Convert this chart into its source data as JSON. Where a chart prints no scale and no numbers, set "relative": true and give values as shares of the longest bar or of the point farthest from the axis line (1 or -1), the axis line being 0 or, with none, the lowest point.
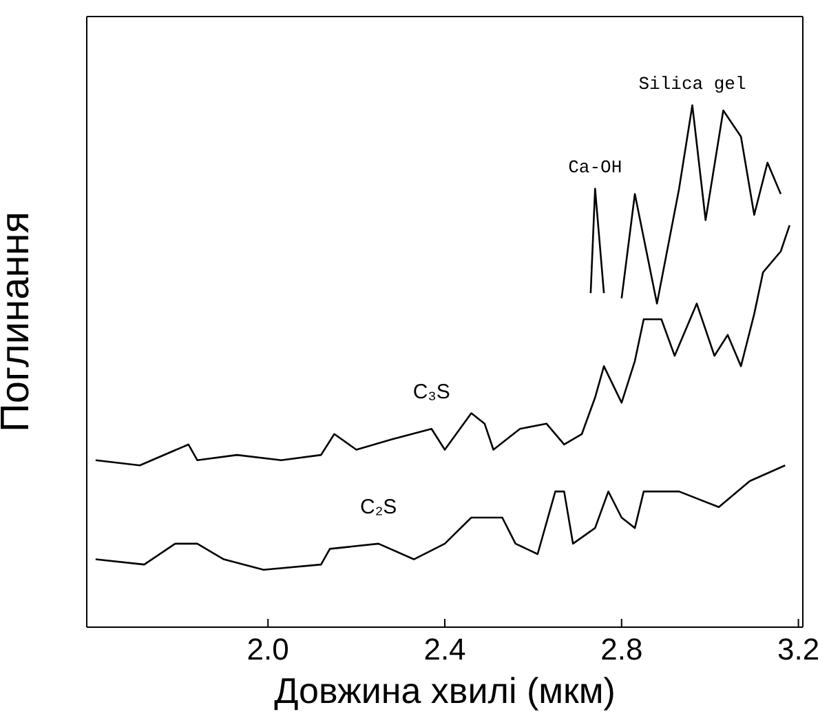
{
  "chart_data": {
    "type": "line",
    "relative": true,
    "xlabel": "Довжина  хвилі (мкм)",
    "ylabel": "Поглинання",
    "xlim": [
      1.59,
      3.21
    ],
    "xticks": [
      {
        "value": 2.0,
        "label": "2.0"
      },
      {
        "value": 2.4,
        "label": "2.4"
      },
      {
        "value": 2.8,
        "label": "2.8"
      },
      {
        "value": 3.2,
        "label": "3.2"
      }
    ],
    "annotations": [
      {
        "text": "Ca-OH",
        "x": 2.74,
        "y": 0.84
      },
      {
        "text": "Silica gel",
        "x": 2.96,
        "y": 1.0
      }
    ],
    "series": [
      {
        "name": "C₃S",
        "color": "#000000",
        "x": [
          1.61,
          1.71,
          1.82,
          1.84,
          1.93,
          2.03,
          2.12,
          2.15,
          2.2,
          2.28,
          2.37,
          2.4,
          2.46,
          2.49,
          2.51,
          2.57,
          2.63,
          2.67,
          2.71,
          2.74,
          2.76,
          2.8,
          2.83,
          2.85,
          2.89,
          2.92,
          2.97,
          3.01,
          3.04,
          3.07,
          3.1,
          3.12,
          3.16,
          3.18
        ],
        "values": [
          0.32,
          0.31,
          0.35,
          0.32,
          0.33,
          0.32,
          0.33,
          0.37,
          0.34,
          0.36,
          0.38,
          0.34,
          0.41,
          0.39,
          0.34,
          0.38,
          0.39,
          0.35,
          0.37,
          0.44,
          0.5,
          0.43,
          0.51,
          0.59,
          0.59,
          0.52,
          0.62,
          0.52,
          0.56,
          0.5,
          0.6,
          0.68,
          0.72,
          0.77
        ]
      },
      {
        "name": "C₂S",
        "color": "#000000",
        "x": [
          1.61,
          1.72,
          1.79,
          1.84,
          1.9,
          1.99,
          2.12,
          2.14,
          2.25,
          2.33,
          2.4,
          2.46,
          2.53,
          2.56,
          2.61,
          2.65,
          2.67,
          2.69,
          2.74,
          2.77,
          2.8,
          2.83,
          2.85,
          2.93,
          3.02,
          3.09,
          3.17
        ],
        "values": [
          0.13,
          0.12,
          0.16,
          0.16,
          0.13,
          0.11,
          0.12,
          0.15,
          0.16,
          0.13,
          0.16,
          0.21,
          0.21,
          0.16,
          0.14,
          0.26,
          0.26,
          0.16,
          0.19,
          0.26,
          0.21,
          0.19,
          0.26,
          0.26,
          0.23,
          0.28,
          0.31
        ]
      },
      {
        "color": "#000000",
        "x": [
          2.73,
          2.74,
          2.76,
          2.78,
          2.8,
          2.83,
          2.88,
          2.93,
          2.96,
          2.99,
          3.03,
          3.07,
          3.1,
          3.13,
          3.16
        ],
        "values": [
          0.64,
          0.84,
          0.64,
          null,
          0.63,
          0.83,
          0.62,
          0.84,
          1.0,
          0.78,
          0.99,
          0.94,
          0.79,
          0.89,
          0.83
        ]
      }
    ]
  }
}
